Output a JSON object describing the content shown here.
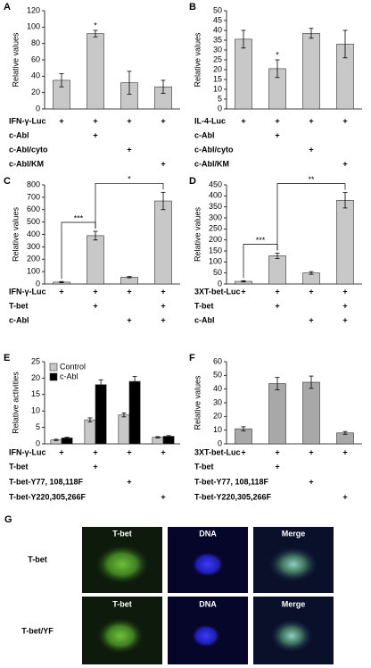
{
  "chart_data": [
    {
      "type": "bar",
      "label": "A",
      "ylabel": "Relative values",
      "color": "#c8c8c8",
      "values": [
        35,
        92,
        32,
        27
      ],
      "errors": [
        8,
        4,
        14,
        8
      ],
      "ylim": [
        0,
        120
      ],
      "yticks": [
        0,
        20,
        40,
        60,
        80,
        100,
        120
      ],
      "bar_labels": [
        null,
        "*",
        null,
        null
      ],
      "conditions": [
        {
          "name": "IFN-γ-Luc",
          "signs": [
            "+",
            "+",
            "+",
            "+"
          ]
        },
        {
          "name": "c-Abl",
          "signs": [
            null,
            "+",
            null,
            null
          ]
        },
        {
          "name": "c-Abl/cyto",
          "signs": [
            null,
            null,
            "+",
            null
          ]
        },
        {
          "name": "c-Abl/KM",
          "signs": [
            null,
            null,
            null,
            "+"
          ]
        }
      ]
    },
    {
      "type": "bar",
      "label": "B",
      "ylabel": "Relative values",
      "color": "#c8c8c8",
      "values": [
        35.5,
        20.5,
        38.5,
        33
      ],
      "errors": [
        4.5,
        4.5,
        2.5,
        7
      ],
      "ylim": [
        0,
        50
      ],
      "yticks": [
        0,
        5,
        10,
        15,
        20,
        25,
        30,
        35,
        40,
        45,
        50
      ],
      "bar_labels": [
        null,
        "*",
        null,
        null
      ],
      "conditions": [
        {
          "name": "IL-4-Luc",
          "signs": [
            "+",
            "+",
            "+",
            "+"
          ]
        },
        {
          "name": "c-Abl",
          "signs": [
            null,
            "+",
            null,
            null
          ]
        },
        {
          "name": "c-Abl/cyto",
          "signs": [
            null,
            null,
            "+",
            null
          ]
        },
        {
          "name": "c-Abl/KM",
          "signs": [
            null,
            null,
            null,
            "+"
          ]
        }
      ]
    },
    {
      "type": "bar",
      "label": "C",
      "ylabel": "Relative values",
      "color": "#c8c8c8",
      "values": [
        15,
        390,
        55,
        670
      ],
      "errors": [
        5,
        35,
        5,
        70
      ],
      "ylim": [
        0,
        800
      ],
      "yticks": [
        0,
        100,
        200,
        300,
        400,
        500,
        600,
        700,
        800
      ],
      "brackets": [
        {
          "text": "***",
          "from": 0,
          "to": 1
        },
        {
          "text": "*",
          "from": 1,
          "to": 3
        }
      ],
      "conditions": [
        {
          "name": "IFN-γ-Luc",
          "signs": [
            "+",
            "+",
            "+",
            "+"
          ]
        },
        {
          "name": "T-bet",
          "signs": [
            null,
            "+",
            null,
            "+"
          ]
        },
        {
          "name": "c-Abl",
          "signs": [
            null,
            null,
            "+",
            "+"
          ]
        }
      ]
    },
    {
      "type": "bar",
      "label": "D",
      "ylabel": "Relative values",
      "color": "#c8c8c8",
      "values": [
        12,
        128,
        50,
        380
      ],
      "errors": [
        3,
        12,
        6,
        35
      ],
      "ylim": [
        0,
        450
      ],
      "yticks": [
        0,
        50,
        100,
        150,
        200,
        250,
        300,
        350,
        400,
        450
      ],
      "brackets": [
        {
          "text": "***",
          "from": 0,
          "to": 1
        },
        {
          "text": "**",
          "from": 1,
          "to": 3
        }
      ],
      "conditions": [
        {
          "name": "3XT-bet-Luc",
          "signs": [
            "+",
            "+",
            "+",
            "+"
          ]
        },
        {
          "name": "T-bet",
          "signs": [
            null,
            "+",
            null,
            "+"
          ]
        },
        {
          "name": "c-Abl",
          "signs": [
            null,
            null,
            "+",
            "+"
          ]
        }
      ]
    },
    {
      "type": "bar",
      "label": "E",
      "ylabel": "Relative activities",
      "series": [
        {
          "name": "Control",
          "color": "#c8c8c8",
          "values": [
            1.2,
            7.3,
            8.8,
            2.0
          ],
          "errors": [
            0.2,
            0.6,
            0.6,
            0.2
          ]
        },
        {
          "name": "c-Abl",
          "color": "#000000",
          "values": [
            1.8,
            18,
            19,
            2.3
          ],
          "errors": [
            0.2,
            1.5,
            1.5,
            0.2
          ]
        }
      ],
      "ylim": [
        0,
        25
      ],
      "yticks": [
        0,
        5,
        10,
        15,
        20,
        25
      ],
      "legend": "top-left",
      "conditions": [
        {
          "name": "IFN-γ-Luc",
          "signs": [
            "+",
            "+",
            "+",
            "+"
          ]
        },
        {
          "name": "T-bet",
          "signs": [
            null,
            "+",
            null,
            null
          ]
        },
        {
          "name": "T-bet-Y77, 108,118F",
          "signs": [
            null,
            null,
            "+",
            null
          ]
        },
        {
          "name": "T-bet-Y220,305,266F",
          "signs": [
            null,
            null,
            null,
            "+"
          ]
        }
      ]
    },
    {
      "type": "bar",
      "label": "F",
      "ylabel": "Relative values",
      "color": "#a8a8a8",
      "values": [
        11,
        44,
        45,
        8
      ],
      "errors": [
        1.5,
        4.5,
        4.5,
        1
      ],
      "ylim": [
        0,
        60
      ],
      "yticks": [
        0,
        10,
        20,
        30,
        40,
        50,
        60
      ],
      "conditions": [
        {
          "name": "3XT-bet-Luc",
          "signs": [
            "+",
            "+",
            "+",
            "+"
          ]
        },
        {
          "name": "T-bet",
          "signs": [
            null,
            "+",
            null,
            null
          ]
        },
        {
          "name": "T-bet-Y77, 108,118F",
          "signs": [
            null,
            null,
            "+",
            null
          ]
        },
        {
          "name": "T-bet-Y220,305,266F",
          "signs": [
            null,
            null,
            null,
            "+"
          ]
        }
      ]
    }
  ],
  "panel_g": {
    "label": "G",
    "columns": [
      "T-bet",
      "DNA",
      "Merge"
    ],
    "rows": [
      "T-bet",
      "T-bet/YF"
    ]
  }
}
